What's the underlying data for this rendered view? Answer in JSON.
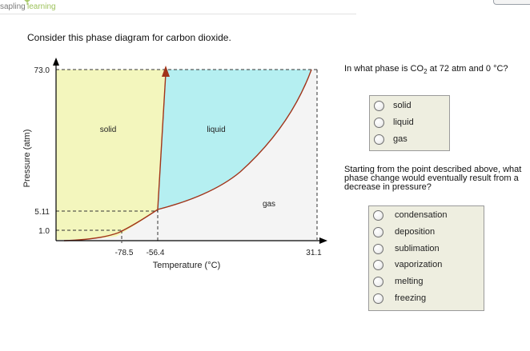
{
  "header": {
    "logo_left": "sapling",
    "logo_right": "learning"
  },
  "prompt": "Consider this phase diagram for carbon dioxide.",
  "chart_data": {
    "type": "phase-diagram",
    "ylabel": "Pressure (atm)",
    "xlabel": "Temperature (°C)",
    "y_ticks": [
      "73.0",
      "5.11",
      "1.0"
    ],
    "x_ticks": [
      "-78.5",
      "-56.4",
      "31.1"
    ],
    "regions": [
      "solid",
      "liquid",
      "gas"
    ],
    "triple_point": {
      "temperature": -56.4,
      "pressure": 5.11
    },
    "critical_point": {
      "temperature": 31.1,
      "pressure": 73.0
    },
    "sublimation_point_1atm": {
      "temperature": -78.5,
      "pressure": 1.0
    },
    "colors": {
      "solid": "#f3f6bd",
      "liquid": "#b5eff1",
      "gas": "#f4f4f4",
      "curve": "#a1341a"
    }
  },
  "question1": {
    "text_prefix": "In what phase is CO",
    "text_sub": "2",
    "text_suffix": " at 72 atm and 0 °C?",
    "options": [
      "solid",
      "liquid",
      "gas"
    ]
  },
  "question2": {
    "text": "Starting from the point described above, what phase change would eventually result from a decrease in pressure?",
    "options": [
      "condensation",
      "deposition",
      "sublimation",
      "vaporization",
      "melting",
      "freezing"
    ]
  }
}
